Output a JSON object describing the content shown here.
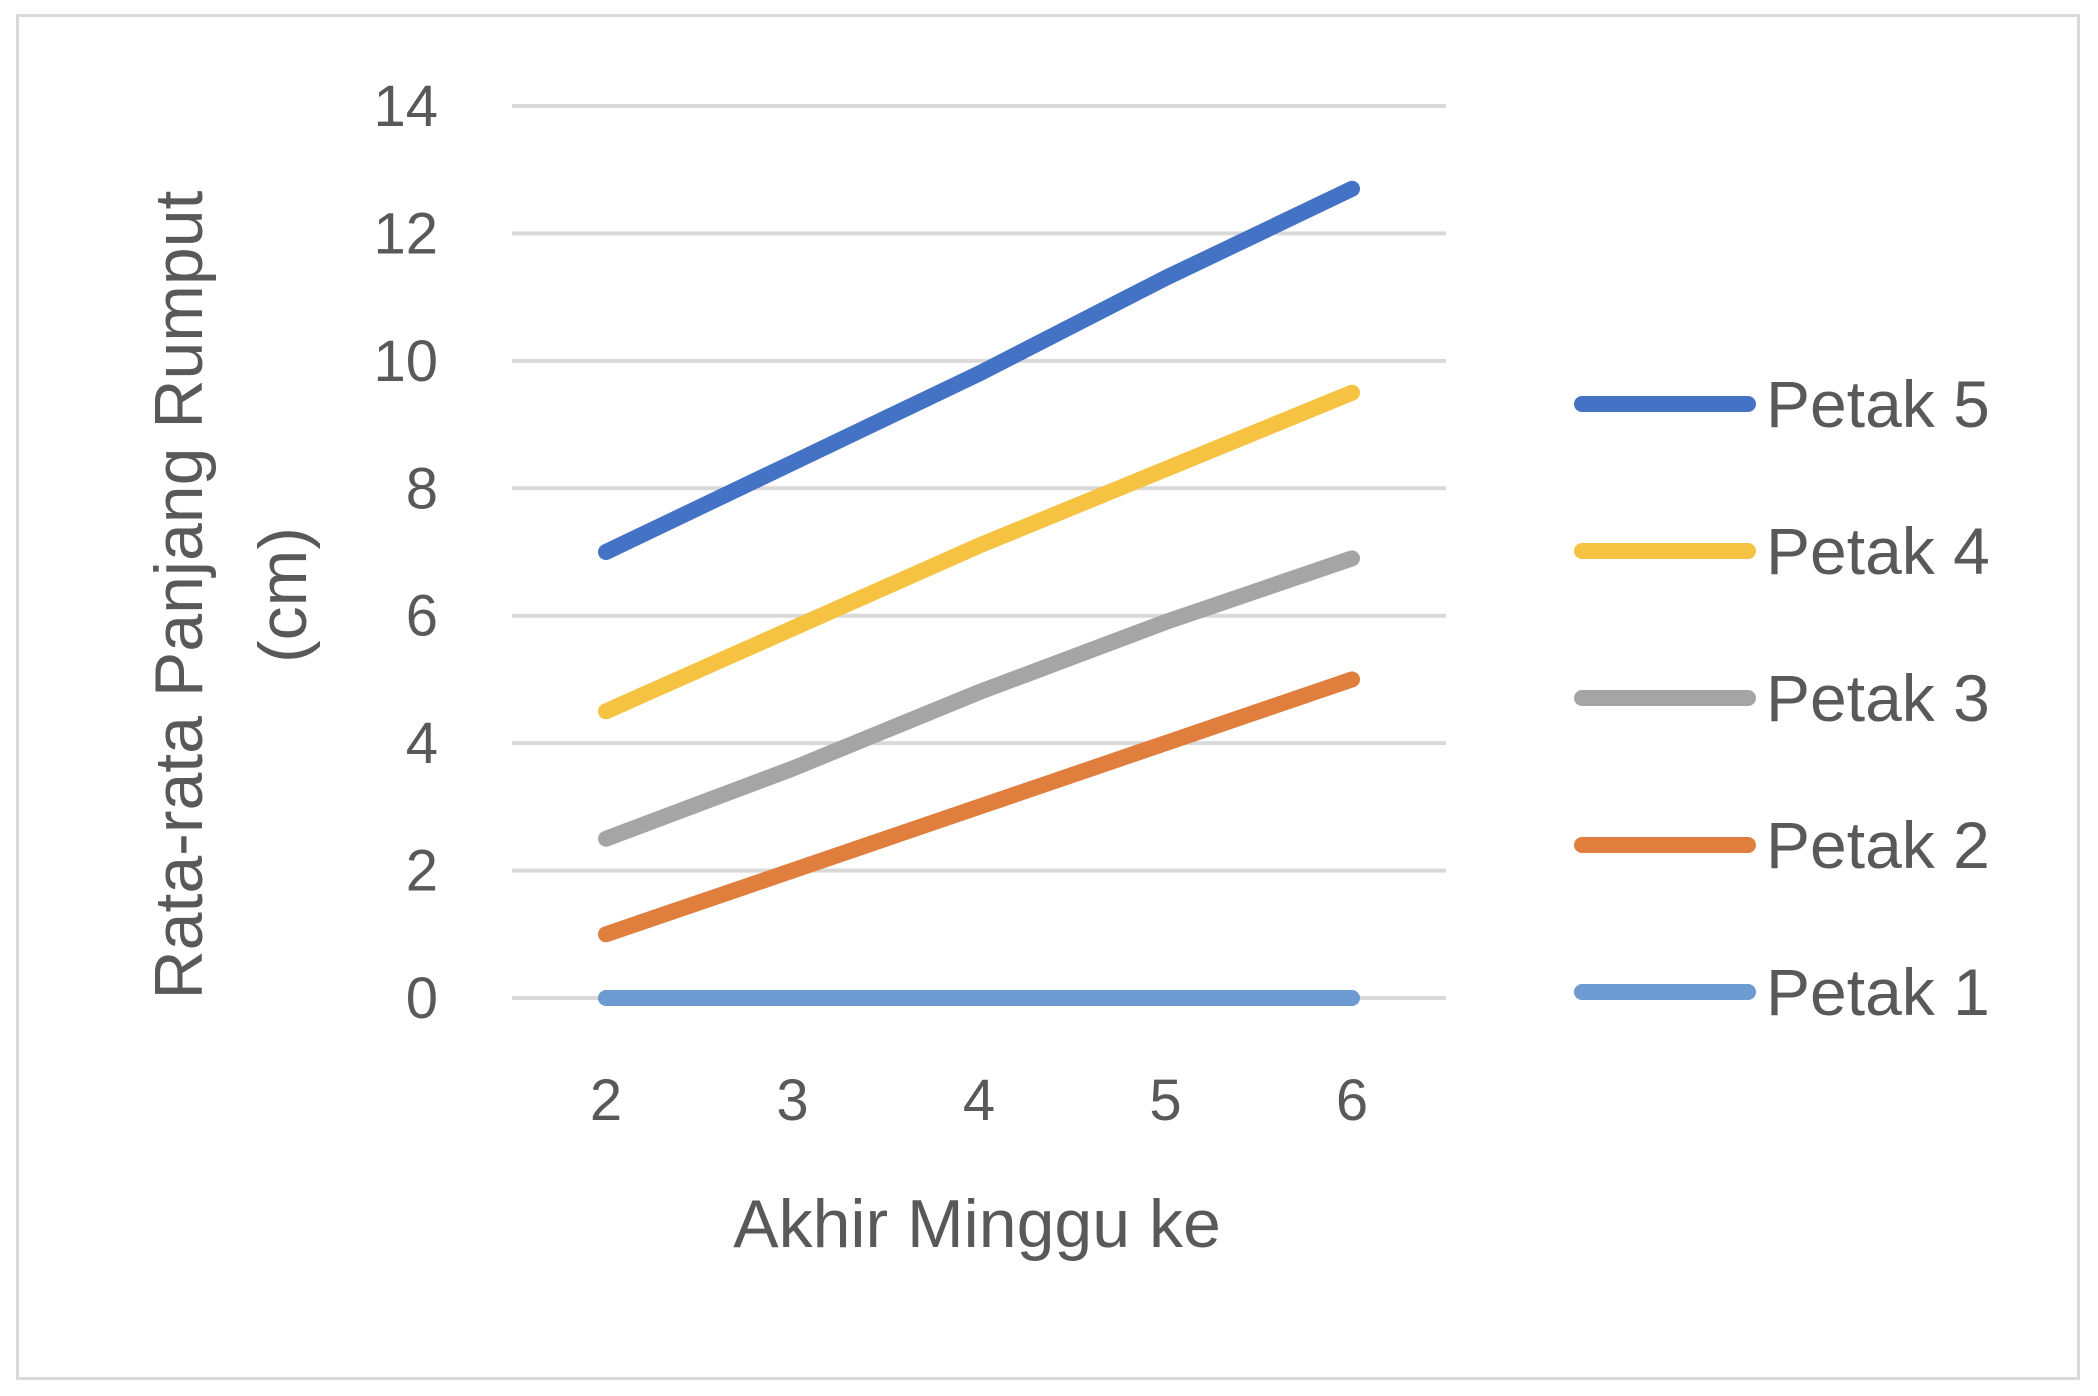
{
  "chart_data": {
    "type": "line",
    "title": "",
    "xlabel": "Akhir Minggu ke",
    "ylabel_lines": [
      "Rata-rata Panjang Rumput",
      "(cm)"
    ],
    "x": [
      2,
      3,
      4,
      5,
      6
    ],
    "x_tick_labels": [
      "2",
      "3",
      "4",
      "5",
      "6"
    ],
    "ylim": [
      0,
      14
    ],
    "y_ticks": [
      0,
      2,
      4,
      6,
      8,
      10,
      12,
      14
    ],
    "y_tick_labels": [
      "0",
      "2",
      "4",
      "6",
      "8",
      "10",
      "12",
      "14"
    ],
    "grid": "horizontal",
    "legend_position": "right",
    "series": [
      {
        "name": "Petak 5",
        "color": "#4472c4",
        "values": [
          7.0,
          8.4,
          9.8,
          11.3,
          12.7
        ]
      },
      {
        "name": "Petak 4",
        "color": "#f5c242",
        "values": [
          4.5,
          5.8,
          7.1,
          8.3,
          9.5
        ]
      },
      {
        "name": "Petak 3",
        "color": "#a5a5a5",
        "values": [
          2.5,
          3.6,
          4.8,
          5.9,
          6.9
        ]
      },
      {
        "name": "Petak 2",
        "color": "#e07f3d",
        "values": [
          1.0,
          2.0,
          3.0,
          4.0,
          5.0
        ]
      },
      {
        "name": "Petak 1",
        "color": "#6b9bd1",
        "values": [
          0,
          0,
          0,
          0,
          0
        ]
      }
    ],
    "gridline_color": "#d9d9d9"
  }
}
